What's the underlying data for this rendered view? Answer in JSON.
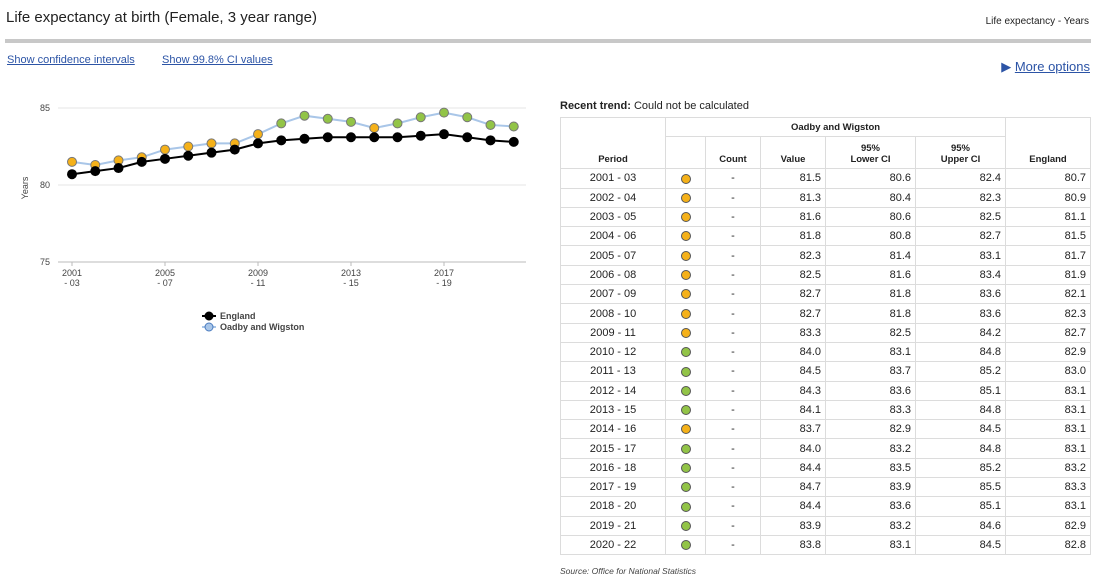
{
  "header": {
    "title": "Life expectancy at birth (Female, 3 year range)",
    "subtitle": "Life expectancy - Years"
  },
  "links": [
    "Show confidence intervals",
    "Show 99.8% CI values"
  ],
  "more_options": "More options",
  "chart_data": {
    "type": "line",
    "y_label": "Years",
    "categories": [
      "2001 - 03",
      null,
      null,
      null,
      "2005 - 07",
      null,
      null,
      null,
      "2009 - 11",
      null,
      null,
      null,
      "2013 - 15",
      null,
      null,
      null,
      "2017 - 19",
      null,
      null,
      null
    ],
    "ylim": [
      75,
      85
    ],
    "yticks": [
      75,
      80,
      85
    ],
    "grid": true,
    "series": [
      {
        "name": "England",
        "color": "#000000",
        "values": [
          80.7,
          80.9,
          81.1,
          81.5,
          81.7,
          81.9,
          82.1,
          82.3,
          82.7,
          82.9,
          83.0,
          83.1,
          83.1,
          83.1,
          83.1,
          83.2,
          83.3,
          83.1,
          82.9,
          82.8
        ]
      },
      {
        "name": "Oadby and Wigston",
        "color": "#a9c6e8",
        "values": [
          81.5,
          81.3,
          81.6,
          81.8,
          82.3,
          82.5,
          82.7,
          82.7,
          83.3,
          84.0,
          84.5,
          84.3,
          84.1,
          83.7,
          84.0,
          84.4,
          84.7,
          84.4,
          83.9,
          83.8
        ],
        "marker_colors": [
          "#f5b119",
          "#f5b119",
          "#f5b119",
          "#f5b119",
          "#f5b119",
          "#f5b119",
          "#f5b119",
          "#f5b119",
          "#f5b119",
          "#92c447",
          "#92c447",
          "#92c447",
          "#92c447",
          "#f5b119",
          "#92c447",
          "#92c447",
          "#92c447",
          "#92c447",
          "#92c447",
          "#92c447"
        ]
      }
    ]
  },
  "recent_trend": {
    "label": "Recent trend:",
    "text": "Could not be calculated"
  },
  "table": {
    "group": "Oadby and Wigston",
    "headers": {
      "period": "Period",
      "count": "Count",
      "value": "Value",
      "lower": [
        "95%",
        "Lower CI"
      ],
      "upper": [
        "95%",
        "Upper CI"
      ],
      "england": "England"
    },
    "row_colors": [
      "#f5b119",
      "#f5b119",
      "#f5b119",
      "#f5b119",
      "#f5b119",
      "#f5b119",
      "#f5b119",
      "#f5b119",
      "#f5b119",
      "#92c447",
      "#92c447",
      "#92c447",
      "#92c447",
      "#f5b119",
      "#92c447",
      "#92c447",
      "#92c447",
      "#92c447",
      "#92c447",
      "#92c447"
    ],
    "rows": [
      [
        "2001 - 03",
        "-",
        "81.5",
        "80.6",
        "82.4",
        "80.7"
      ],
      [
        "2002 - 04",
        "-",
        "81.3",
        "80.4",
        "82.3",
        "80.9"
      ],
      [
        "2003 - 05",
        "-",
        "81.6",
        "80.6",
        "82.5",
        "81.1"
      ],
      [
        "2004 - 06",
        "-",
        "81.8",
        "80.8",
        "82.7",
        "81.5"
      ],
      [
        "2005 - 07",
        "-",
        "82.3",
        "81.4",
        "83.1",
        "81.7"
      ],
      [
        "2006 - 08",
        "-",
        "82.5",
        "81.6",
        "83.4",
        "81.9"
      ],
      [
        "2007 - 09",
        "-",
        "82.7",
        "81.8",
        "83.6",
        "82.1"
      ],
      [
        "2008 - 10",
        "-",
        "82.7",
        "81.8",
        "83.6",
        "82.3"
      ],
      [
        "2009 - 11",
        "-",
        "83.3",
        "82.5",
        "84.2",
        "82.7"
      ],
      [
        "2010 - 12",
        "-",
        "84.0",
        "83.1",
        "84.8",
        "82.9"
      ],
      [
        "2011 - 13",
        "-",
        "84.5",
        "83.7",
        "85.2",
        "83.0"
      ],
      [
        "2012 - 14",
        "-",
        "84.3",
        "83.6",
        "85.1",
        "83.1"
      ],
      [
        "2013 - 15",
        "-",
        "84.1",
        "83.3",
        "84.8",
        "83.1"
      ],
      [
        "2014 - 16",
        "-",
        "83.7",
        "82.9",
        "84.5",
        "83.1"
      ],
      [
        "2015 - 17",
        "-",
        "84.0",
        "83.2",
        "84.8",
        "83.1"
      ],
      [
        "2016 - 18",
        "-",
        "84.4",
        "83.5",
        "85.2",
        "83.2"
      ],
      [
        "2017 - 19",
        "-",
        "84.7",
        "83.9",
        "85.5",
        "83.3"
      ],
      [
        "2018 - 20",
        "-",
        "84.4",
        "83.6",
        "85.1",
        "83.1"
      ],
      [
        "2019 - 21",
        "-",
        "83.9",
        "83.2",
        "84.6",
        "82.9"
      ],
      [
        "2020 - 22",
        "-",
        "83.8",
        "83.1",
        "84.5",
        "82.8"
      ]
    ]
  },
  "source": "Source: Office for National Statistics"
}
